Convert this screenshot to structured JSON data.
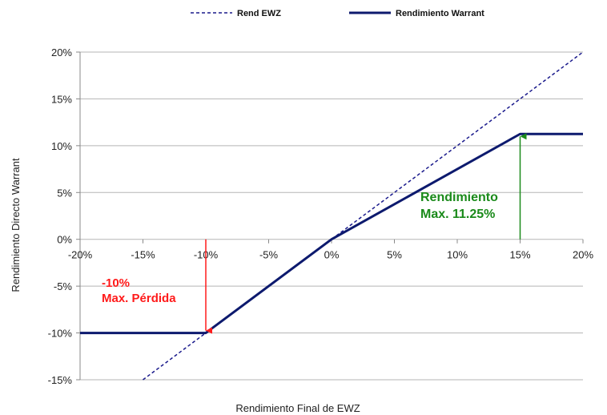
{
  "chart_data": {
    "type": "line",
    "title": "",
    "xlabel": "Rendimiento Final de EWZ",
    "ylabel": "Rendimiento Directo Warrant",
    "xlim": [
      -20,
      20
    ],
    "ylim": [
      -15,
      20
    ],
    "x_ticks": [
      "-20%",
      "-15%",
      "-10%",
      "-5%",
      "0%",
      "5%",
      "10%",
      "15%",
      "20%"
    ],
    "y_ticks": [
      "20%",
      "15%",
      "10%",
      "5%",
      "0%",
      "-5%",
      "-10%",
      "-15%"
    ],
    "x_tick_values": [
      -20,
      -15,
      -10,
      -5,
      0,
      5,
      10,
      15,
      20
    ],
    "y_tick_values": [
      20,
      15,
      10,
      5,
      0,
      -5,
      -10,
      -15
    ],
    "grid": "horizontal",
    "legend_position": "top",
    "series": [
      {
        "name": "Rend EWZ",
        "style": "dashed",
        "color": "#1a1a8c",
        "x": [
          -15,
          20
        ],
        "y": [
          -15,
          20
        ]
      },
      {
        "name": "Rendimiento Warrant",
        "style": "solid",
        "color": "#0d1a6e",
        "x": [
          -20,
          -10,
          0,
          15,
          20
        ],
        "y": [
          -10,
          -10,
          0,
          11.25,
          11.25
        ]
      }
    ],
    "annotations": [
      {
        "lines": [
          "-10%",
          "Max. Pérdida"
        ],
        "color": "#ff1a1a",
        "arrow_from": [
          -10,
          0
        ],
        "arrow_to": [
          -10,
          -10
        ]
      },
      {
        "lines": [
          "Rendimiento",
          "Max. 11.25%"
        ],
        "color": "#1a8a1a",
        "arrow_from": [
          15,
          0
        ],
        "arrow_to": [
          15,
          11.25
        ]
      }
    ]
  }
}
